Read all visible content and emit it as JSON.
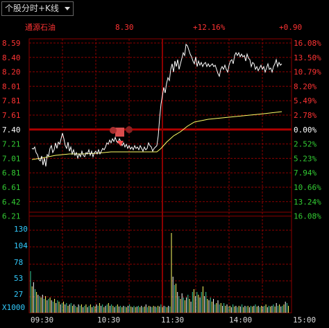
{
  "header": {
    "tab_label": "个股分时+K线",
    "stock_name": "通源石油",
    "price": "8.30",
    "change_pct": "+12.16%",
    "change": "+0.90"
  },
  "colors": {
    "up": "#ff3333",
    "down": "#33cc33",
    "neutral": "#ffffff",
    "grid": "#8a0000",
    "price_line": "#ffffff",
    "avg_line": "#ffff66",
    "volume_label": "#33ccff"
  },
  "price_axis": {
    "left_labels": [
      "8.59",
      "8.40",
      "8.20",
      "8.01",
      "7.81",
      "7.61",
      "7.40",
      "7.21",
      "7.01",
      "6.81",
      "6.61",
      "6.42",
      "6.21"
    ],
    "right_labels": [
      "16.08%",
      "13.50%",
      "10.79%",
      "8.20%",
      "5.49%",
      "2.78%",
      "0.00%",
      "2.52%",
      "5.23%",
      "7.94%",
      "10.66%",
      "13.24%",
      "16.08%"
    ],
    "prev_close": "7.40"
  },
  "volume_axis": {
    "labels": [
      "130",
      "104",
      "78",
      "53",
      "27"
    ],
    "unit": "X1000"
  },
  "time_axis": {
    "labels": [
      "09:30",
      "10:30",
      "11:30",
      "14:00",
      "15:00"
    ]
  }
}
